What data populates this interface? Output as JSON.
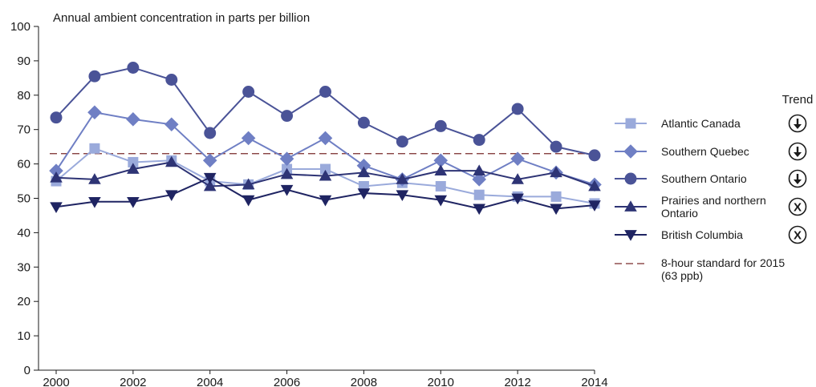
{
  "chart_data": {
    "type": "line",
    "title": "",
    "ylabel": "Annual ambient concentration in parts per billion",
    "xlabel": "",
    "ylim": [
      0,
      100
    ],
    "xlim": [
      2000,
      2014
    ],
    "yticks": [
      "0",
      "10",
      "20",
      "30",
      "40",
      "50",
      "60",
      "70",
      "80",
      "90",
      "100"
    ],
    "xticks": [
      "2000",
      "2002",
      "2004",
      "2006",
      "2008",
      "2010",
      "2012",
      "2014"
    ],
    "x": [
      2000,
      2001,
      2002,
      2003,
      2004,
      2005,
      2006,
      2007,
      2008,
      2009,
      2010,
      2011,
      2012,
      2013,
      2014
    ],
    "grid": false,
    "legend_position": "right",
    "trend_title": "Trend",
    "series": [
      {
        "name": "Atlantic Canada",
        "marker": "square",
        "color": "#9aaadb",
        "trend": "↓",
        "values": [
          55,
          64.5,
          60.5,
          61,
          55,
          54,
          58.5,
          58.5,
          53.5,
          54.5,
          53.5,
          51,
          50.5,
          50.5,
          48.5
        ]
      },
      {
        "name": "Southern Quebec",
        "marker": "diamond",
        "color": "#6f7fc4",
        "trend": "↓",
        "values": [
          58,
          75,
          73,
          71.5,
          61,
          67.5,
          61.5,
          67.5,
          59.5,
          55.5,
          61,
          55.5,
          61.5,
          57.5,
          54
        ]
      },
      {
        "name": "Southern Ontario",
        "marker": "circle",
        "color": "#4a5397",
        "trend": "↓",
        "values": [
          73.5,
          85.5,
          88,
          84.5,
          69,
          81,
          74,
          81,
          72,
          66.5,
          71,
          67,
          76,
          65,
          62.5
        ]
      },
      {
        "name": "Prairies and northern Ontario",
        "marker": "triangle-up",
        "color": "#2e3475",
        "trend": "X",
        "values": [
          56,
          55.5,
          58.5,
          60.5,
          53.5,
          54,
          57,
          56.5,
          57.5,
          55.5,
          58,
          58,
          55.5,
          57.5,
          53.5
        ]
      },
      {
        "name": "British Columbia",
        "marker": "triangle-down",
        "color": "#1f2462",
        "trend": "X",
        "values": [
          47.5,
          49,
          49,
          51,
          56,
          49.5,
          52.5,
          49.5,
          51.5,
          51,
          49.5,
          47,
          50,
          47,
          48
        ]
      }
    ],
    "reference_line": {
      "name": "8-hour standard for 2015",
      "name_line2": "(63 ppb)",
      "value": 63,
      "color": "#7a2a2a",
      "style": "dashed"
    }
  }
}
